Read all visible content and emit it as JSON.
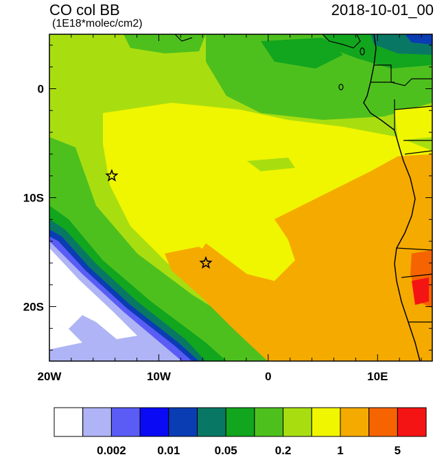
{
  "header": {
    "variable": "CO col BB",
    "units": "(1E18*molec/cm2)",
    "datetime": "2018-10-01_00"
  },
  "map": {
    "lon_range": [
      -20,
      15
    ],
    "lat_range": [
      -25,
      5
    ],
    "lon_ticks": [
      {
        "value": -20,
        "label": "20W"
      },
      {
        "value": -10,
        "label": "10W"
      },
      {
        "value": 0,
        "label": "0"
      },
      {
        "value": 10,
        "label": "10E"
      }
    ],
    "lat_ticks": [
      {
        "value": 0,
        "label": "0"
      },
      {
        "value": -10,
        "label": "10S"
      },
      {
        "value": -20,
        "label": "20S"
      }
    ],
    "markers": [
      {
        "name": "star-marker",
        "lon": -14.3,
        "lat": -8.0
      },
      {
        "name": "star-marker",
        "lon": -5.7,
        "lat": -16.0
      }
    ]
  },
  "colorbar": {
    "colors": [
      "#ffffff",
      "#aeb4f5",
      "#5a5cf5",
      "#0a0af5",
      "#0a3cb4",
      "#087864",
      "#12a51e",
      "#4ec01e",
      "#a8de10",
      "#f0f500",
      "#f5aa00",
      "#f56400",
      "#f51414"
    ],
    "labels": [
      {
        "text": "0.002",
        "after_box": 2
      },
      {
        "text": "0.01",
        "after_box": 4
      },
      {
        "text": "0.05",
        "after_box": 6
      },
      {
        "text": "0.2",
        "after_box": 8
      },
      {
        "text": "1",
        "after_box": 10
      },
      {
        "text": "5",
        "after_box": 12
      }
    ]
  }
}
